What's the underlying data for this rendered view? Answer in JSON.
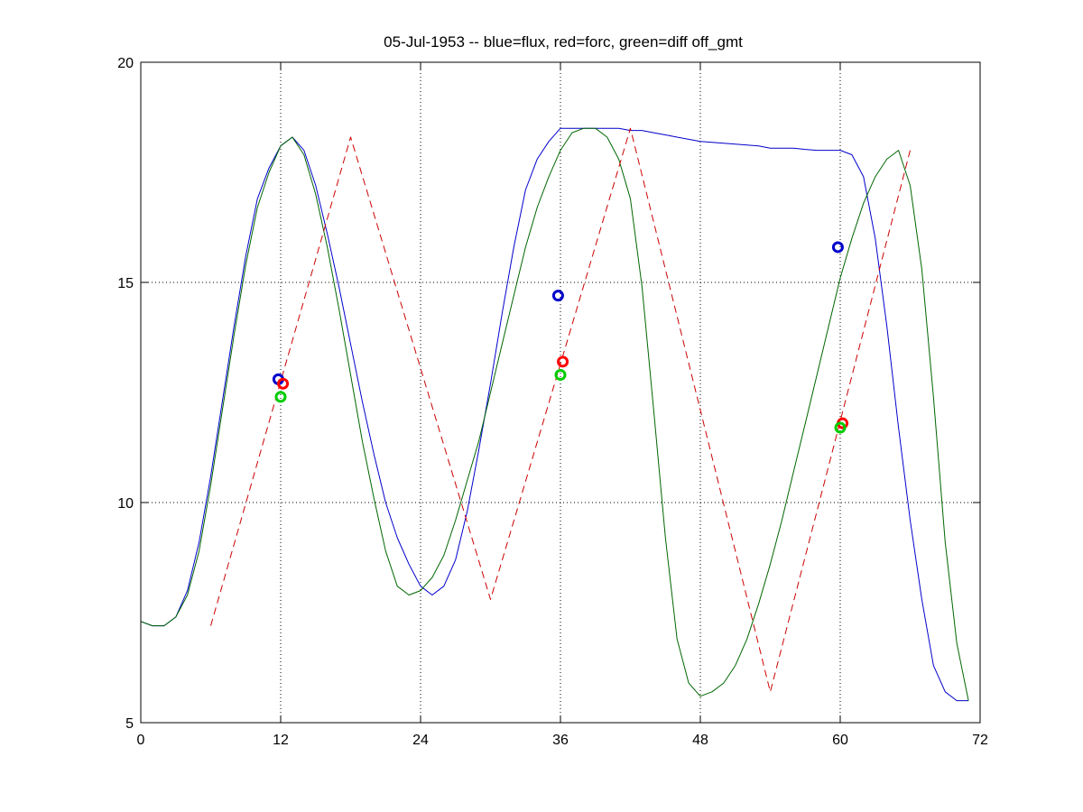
{
  "chart_data": {
    "type": "line",
    "title": "05-Jul-1953 -- blue=flux, red=forc, green=diff off_gmt",
    "xlabel": "",
    "ylabel": "",
    "xlim": [
      0,
      72
    ],
    "ylim": [
      5,
      20
    ],
    "xticks": [
      0,
      12,
      24,
      36,
      48,
      60,
      72
    ],
    "yticks": [
      5,
      10,
      15,
      20
    ],
    "xtick_labels": [
      "0",
      "12",
      "24",
      "36",
      "48",
      "60",
      "72"
    ],
    "ytick_labels": [
      "5",
      "10",
      "15",
      "20"
    ],
    "grid": "dotted",
    "legend": "none",
    "series": [
      {
        "color": "#0000cc",
        "style": "solid",
        "x": [
          0,
          1,
          2,
          3,
          4,
          5,
          6,
          7,
          8,
          9,
          10,
          11,
          12,
          13,
          14,
          15,
          16,
          17,
          18,
          19,
          20,
          21,
          22,
          23,
          24,
          25,
          26,
          27,
          28,
          29,
          30,
          31,
          32,
          33,
          34,
          35,
          36,
          37,
          38,
          39,
          40,
          41,
          42,
          43,
          44,
          45,
          46,
          47,
          48,
          49,
          50,
          51,
          52,
          53,
          54,
          55,
          56,
          57,
          58,
          59,
          60,
          61,
          62,
          63,
          64,
          65,
          66,
          67,
          68,
          69,
          70,
          71
        ],
        "y": [
          7.3,
          7.2,
          7.2,
          7.4,
          8.0,
          9.1,
          10.6,
          12.3,
          14.0,
          15.6,
          16.9,
          17.6,
          18.1,
          18.3,
          18.0,
          17.2,
          16.1,
          14.9,
          13.6,
          12.3,
          11.1,
          10.0,
          9.2,
          8.6,
          8.1,
          7.9,
          8.1,
          8.7,
          9.8,
          11.2,
          12.7,
          14.3,
          15.8,
          17.1,
          17.8,
          18.2,
          18.5,
          18.5,
          18.5,
          18.5,
          18.5,
          18.5,
          18.45,
          18.45,
          18.4,
          18.35,
          18.3,
          18.25,
          18.2,
          18.18,
          18.16,
          18.14,
          18.12,
          18.1,
          18.05,
          18.05,
          18.05,
          18.02,
          18.0,
          18.0,
          18.0,
          17.9,
          17.4,
          16.0,
          14.0,
          11.7,
          9.6,
          7.8,
          6.3,
          5.7,
          5.5,
          5.5
        ]
      },
      {
        "color": "#006600",
        "style": "solid",
        "x": [
          0,
          1,
          2,
          3,
          4,
          5,
          6,
          7,
          8,
          9,
          10,
          11,
          12,
          13,
          14,
          15,
          16,
          17,
          18,
          19,
          20,
          21,
          22,
          23,
          24,
          25,
          26,
          27,
          28,
          29,
          30,
          31,
          32,
          33,
          34,
          35,
          36,
          37,
          38,
          39,
          40,
          41,
          42,
          43,
          44,
          45,
          46,
          47,
          48,
          49,
          50,
          51,
          52,
          53,
          54,
          55,
          56,
          57,
          58,
          59,
          60,
          61,
          62,
          63,
          64,
          65,
          66,
          67,
          68,
          69,
          70,
          71
        ],
        "y": [
          7.3,
          7.2,
          7.2,
          7.4,
          7.9,
          8.9,
          10.4,
          12.1,
          13.8,
          15.4,
          16.7,
          17.5,
          18.1,
          18.3,
          17.9,
          17.0,
          15.8,
          14.4,
          12.9,
          11.4,
          10.1,
          8.9,
          8.1,
          7.9,
          8.0,
          8.3,
          8.8,
          9.6,
          10.5,
          11.4,
          12.5,
          13.6,
          14.7,
          15.8,
          16.7,
          17.4,
          18.0,
          18.4,
          18.5,
          18.5,
          18.3,
          17.8,
          16.9,
          14.9,
          12.1,
          9.2,
          6.9,
          5.9,
          5.6,
          5.7,
          5.9,
          6.3,
          6.9,
          7.7,
          8.6,
          9.6,
          10.7,
          11.8,
          12.9,
          14.0,
          15.1,
          16.0,
          16.8,
          17.4,
          17.8,
          18.0,
          17.2,
          15.3,
          12.4,
          9.1,
          6.8,
          5.5
        ]
      },
      {
        "color": "#cc0000",
        "style": "dashed",
        "x": [
          6,
          18,
          30,
          42,
          54,
          66
        ],
        "y": [
          7.2,
          18.3,
          7.8,
          18.5,
          5.7,
          18.0
        ]
      }
    ],
    "markers": [
      {
        "color": "#0000cc",
        "x": 11.8,
        "y": 12.8
      },
      {
        "color": "#ff0000",
        "x": 12.2,
        "y": 12.7
      },
      {
        "color": "#00cc00",
        "x": 12.0,
        "y": 12.4
      },
      {
        "color": "#0000cc",
        "x": 35.8,
        "y": 14.7
      },
      {
        "color": "#ff0000",
        "x": 36.2,
        "y": 13.2
      },
      {
        "color": "#00cc00",
        "x": 36.0,
        "y": 12.9
      },
      {
        "color": "#0000cc",
        "x": 59.8,
        "y": 15.8
      },
      {
        "color": "#ff0000",
        "x": 60.2,
        "y": 11.8
      },
      {
        "color": "#00cc00",
        "x": 60.0,
        "y": 11.7
      }
    ]
  }
}
